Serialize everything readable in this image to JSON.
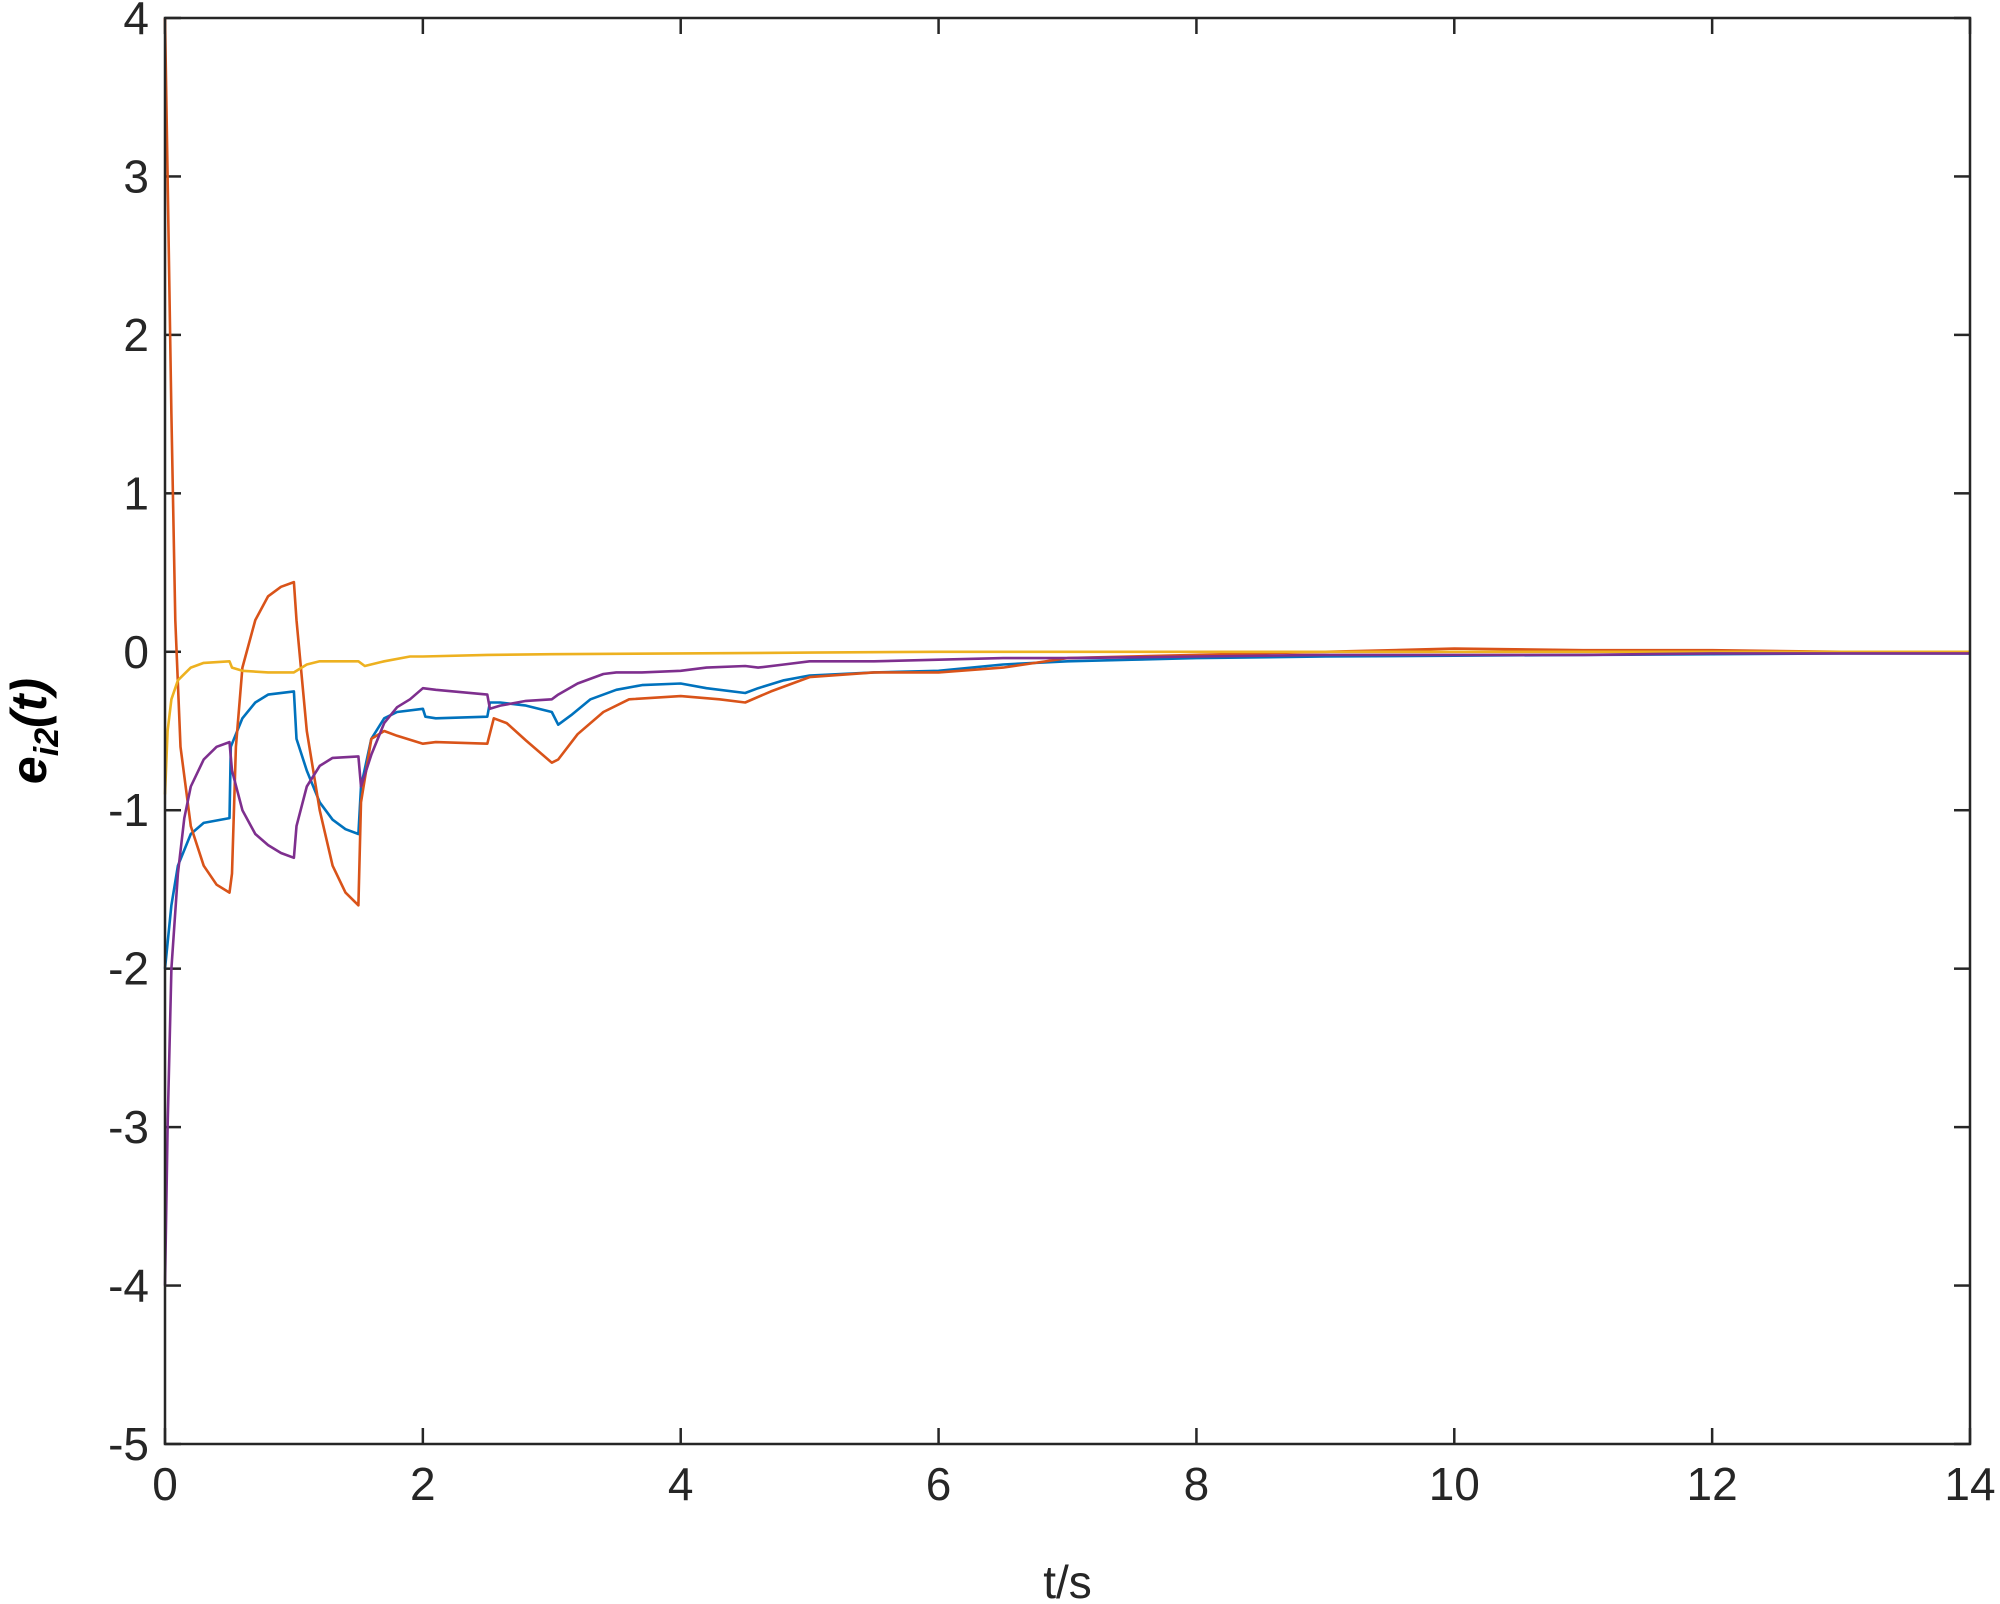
{
  "chart_data": {
    "type": "line",
    "xlabel": "t/s",
    "ylabel": {
      "main": "e",
      "sub": "i2",
      "tail": "(t)"
    },
    "xlim": [
      0,
      14
    ],
    "ylim": [
      -5,
      4
    ],
    "xticks": [
      0,
      2,
      4,
      6,
      8,
      10,
      12,
      14
    ],
    "yticks": [
      -5,
      -4,
      -3,
      -2,
      -1,
      0,
      1,
      2,
      3,
      4
    ],
    "xtick_labels": [
      "0",
      "2",
      "4",
      "6",
      "8",
      "10",
      "12",
      "14"
    ],
    "ytick_labels": [
      "-5",
      "-4",
      "-3",
      "-2",
      "-1",
      "0",
      "1",
      "2",
      "3",
      "4"
    ],
    "grid": false,
    "legend": "none",
    "series": [
      {
        "color": "#0072BD",
        "points": [
          [
            0,
            -2.0
          ],
          [
            0.05,
            -1.6
          ],
          [
            0.1,
            -1.35
          ],
          [
            0.2,
            -1.15
          ],
          [
            0.3,
            -1.08
          ],
          [
            0.5,
            -1.05
          ],
          [
            0.51,
            -0.6
          ],
          [
            0.6,
            -0.42
          ],
          [
            0.7,
            -0.32
          ],
          [
            0.8,
            -0.27
          ],
          [
            1.0,
            -0.25
          ],
          [
            1.02,
            -0.55
          ],
          [
            1.1,
            -0.75
          ],
          [
            1.2,
            -0.95
          ],
          [
            1.3,
            -1.06
          ],
          [
            1.4,
            -1.12
          ],
          [
            1.5,
            -1.15
          ],
          [
            1.52,
            -0.85
          ],
          [
            1.6,
            -0.55
          ],
          [
            1.7,
            -0.42
          ],
          [
            1.8,
            -0.38
          ],
          [
            2.0,
            -0.36
          ],
          [
            2.02,
            -0.41
          ],
          [
            2.1,
            -0.42
          ],
          [
            2.5,
            -0.41
          ],
          [
            2.52,
            -0.32
          ],
          [
            2.6,
            -0.32
          ],
          [
            2.8,
            -0.34
          ],
          [
            3.0,
            -0.38
          ],
          [
            3.05,
            -0.46
          ],
          [
            3.15,
            -0.4
          ],
          [
            3.3,
            -0.3
          ],
          [
            3.5,
            -0.24
          ],
          [
            3.7,
            -0.21
          ],
          [
            4.0,
            -0.2
          ],
          [
            4.2,
            -0.23
          ],
          [
            4.5,
            -0.26
          ],
          [
            4.6,
            -0.23
          ],
          [
            4.8,
            -0.18
          ],
          [
            5.0,
            -0.15
          ],
          [
            5.5,
            -0.13
          ],
          [
            6.0,
            -0.12
          ],
          [
            6.5,
            -0.08
          ],
          [
            7.0,
            -0.06
          ],
          [
            7.5,
            -0.05
          ],
          [
            8.0,
            -0.04
          ],
          [
            9.0,
            -0.03
          ],
          [
            10.0,
            -0.025
          ],
          [
            11.0,
            -0.02
          ],
          [
            12.0,
            -0.015
          ],
          [
            13.0,
            -0.01
          ],
          [
            14.0,
            -0.01
          ]
        ]
      },
      {
        "color": "#D95319",
        "points": [
          [
            0,
            4.0
          ],
          [
            0.02,
            3.0
          ],
          [
            0.05,
            1.5
          ],
          [
            0.08,
            0.2
          ],
          [
            0.12,
            -0.6
          ],
          [
            0.2,
            -1.1
          ],
          [
            0.3,
            -1.35
          ],
          [
            0.4,
            -1.47
          ],
          [
            0.5,
            -1.52
          ],
          [
            0.52,
            -1.4
          ],
          [
            0.55,
            -0.6
          ],
          [
            0.6,
            -0.1
          ],
          [
            0.7,
            0.2
          ],
          [
            0.8,
            0.35
          ],
          [
            0.9,
            0.41
          ],
          [
            1.0,
            0.44
          ],
          [
            1.02,
            0.2
          ],
          [
            1.1,
            -0.5
          ],
          [
            1.2,
            -1.0
          ],
          [
            1.3,
            -1.35
          ],
          [
            1.4,
            -1.52
          ],
          [
            1.5,
            -1.6
          ],
          [
            1.52,
            -0.95
          ],
          [
            1.6,
            -0.55
          ],
          [
            1.7,
            -0.5
          ],
          [
            1.8,
            -0.53
          ],
          [
            2.0,
            -0.58
          ],
          [
            2.1,
            -0.57
          ],
          [
            2.5,
            -0.58
          ],
          [
            2.55,
            -0.42
          ],
          [
            2.65,
            -0.45
          ],
          [
            2.8,
            -0.56
          ],
          [
            3.0,
            -0.7
          ],
          [
            3.05,
            -0.68
          ],
          [
            3.2,
            -0.52
          ],
          [
            3.4,
            -0.38
          ],
          [
            3.6,
            -0.3
          ],
          [
            4.0,
            -0.28
          ],
          [
            4.3,
            -0.3
          ],
          [
            4.5,
            -0.32
          ],
          [
            4.7,
            -0.25
          ],
          [
            5.0,
            -0.16
          ],
          [
            5.5,
            -0.13
          ],
          [
            6.0,
            -0.13
          ],
          [
            6.5,
            -0.1
          ],
          [
            7.0,
            -0.04
          ],
          [
            8.0,
            -0.02
          ],
          [
            9.0,
            0.0
          ],
          [
            10.0,
            0.02
          ],
          [
            11.0,
            0.01
          ],
          [
            12.0,
            0.01
          ],
          [
            13.0,
            0.0
          ],
          [
            14.0,
            0.0
          ]
        ]
      },
      {
        "color": "#EDB120",
        "points": [
          [
            0,
            -0.9
          ],
          [
            0.02,
            -0.5
          ],
          [
            0.05,
            -0.3
          ],
          [
            0.1,
            -0.18
          ],
          [
            0.2,
            -0.1
          ],
          [
            0.3,
            -0.07
          ],
          [
            0.5,
            -0.06
          ],
          [
            0.52,
            -0.1
          ],
          [
            0.6,
            -0.12
          ],
          [
            0.8,
            -0.13
          ],
          [
            1.0,
            -0.13
          ],
          [
            1.1,
            -0.08
          ],
          [
            1.2,
            -0.06
          ],
          [
            1.5,
            -0.06
          ],
          [
            1.55,
            -0.09
          ],
          [
            1.7,
            -0.06
          ],
          [
            1.9,
            -0.03
          ],
          [
            2.0,
            -0.03
          ],
          [
            2.5,
            -0.02
          ],
          [
            3.0,
            -0.015
          ],
          [
            4.0,
            -0.01
          ],
          [
            5.0,
            -0.005
          ],
          [
            6.0,
            0.0
          ],
          [
            8.0,
            0.0
          ],
          [
            10.0,
            0.0
          ],
          [
            12.0,
            0.0
          ],
          [
            14.0,
            0.0
          ]
        ]
      },
      {
        "color": "#7E2F8E",
        "points": [
          [
            0,
            -4.0
          ],
          [
            0.02,
            -3.0
          ],
          [
            0.05,
            -2.0
          ],
          [
            0.1,
            -1.4
          ],
          [
            0.15,
            -1.05
          ],
          [
            0.2,
            -0.85
          ],
          [
            0.3,
            -0.68
          ],
          [
            0.4,
            -0.6
          ],
          [
            0.5,
            -0.57
          ],
          [
            0.52,
            -0.75
          ],
          [
            0.6,
            -1.0
          ],
          [
            0.7,
            -1.15
          ],
          [
            0.8,
            -1.22
          ],
          [
            0.9,
            -1.27
          ],
          [
            1.0,
            -1.3
          ],
          [
            1.02,
            -1.1
          ],
          [
            1.1,
            -0.85
          ],
          [
            1.2,
            -0.72
          ],
          [
            1.3,
            -0.67
          ],
          [
            1.5,
            -0.66
          ],
          [
            1.52,
            -0.85
          ],
          [
            1.6,
            -0.65
          ],
          [
            1.7,
            -0.45
          ],
          [
            1.8,
            -0.35
          ],
          [
            1.9,
            -0.3
          ],
          [
            2.0,
            -0.23
          ],
          [
            2.1,
            -0.24
          ],
          [
            2.5,
            -0.27
          ],
          [
            2.52,
            -0.36
          ],
          [
            2.6,
            -0.34
          ],
          [
            2.8,
            -0.31
          ],
          [
            3.0,
            -0.3
          ],
          [
            3.05,
            -0.27
          ],
          [
            3.2,
            -0.2
          ],
          [
            3.4,
            -0.14
          ],
          [
            3.5,
            -0.13
          ],
          [
            3.7,
            -0.13
          ],
          [
            4.0,
            -0.12
          ],
          [
            4.2,
            -0.1
          ],
          [
            4.5,
            -0.09
          ],
          [
            4.6,
            -0.1
          ],
          [
            4.8,
            -0.08
          ],
          [
            5.0,
            -0.06
          ],
          [
            5.5,
            -0.06
          ],
          [
            6.0,
            -0.05
          ],
          [
            6.5,
            -0.04
          ],
          [
            7.0,
            -0.04
          ],
          [
            8.0,
            -0.03
          ],
          [
            9.0,
            -0.02
          ],
          [
            10.0,
            -0.02
          ],
          [
            11.0,
            -0.02
          ],
          [
            12.0,
            -0.01
          ],
          [
            13.0,
            -0.01
          ],
          [
            14.0,
            -0.01
          ]
        ]
      }
    ]
  }
}
